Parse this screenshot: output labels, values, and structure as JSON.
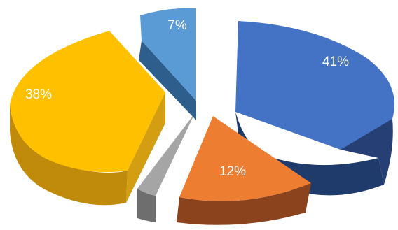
{
  "chart_data": {
    "type": "pie",
    "title": "",
    "legend": "none",
    "slices": [
      {
        "label": "41%",
        "value": 41,
        "color": "#4472c4"
      },
      {
        "label": "12%",
        "value": 12,
        "color": "#ed7d31"
      },
      {
        "label": "",
        "value": 2,
        "color": "#a5a5a5"
      },
      {
        "label": "38%",
        "value": 38,
        "color": "#ffc000"
      },
      {
        "label": "7%",
        "value": 7,
        "color": "#5b9bd5"
      }
    ]
  }
}
